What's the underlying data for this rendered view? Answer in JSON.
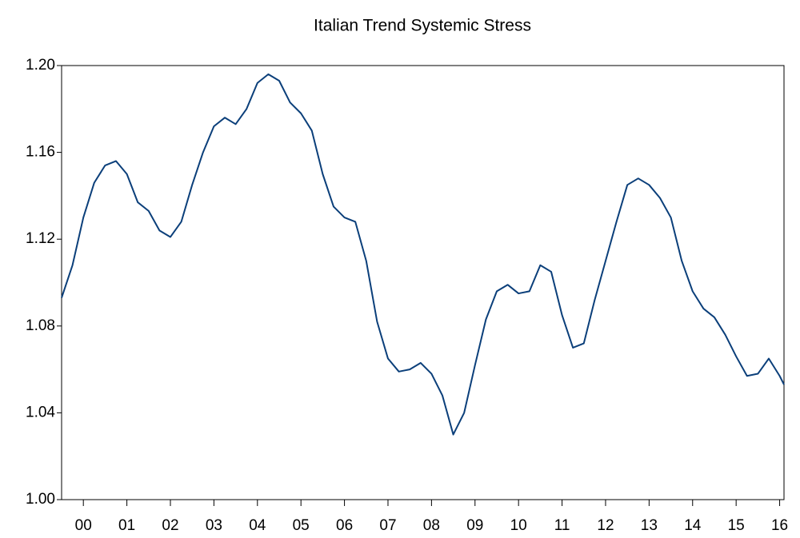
{
  "chart_data": {
    "type": "line",
    "title": "Italian Trend Systemic Stress",
    "x": [
      0,
      0.25,
      0.5,
      0.75,
      1,
      1.25,
      1.5,
      1.75,
      2,
      2.25,
      2.5,
      2.75,
      3,
      3.25,
      3.5,
      3.75,
      4,
      4.25,
      4.5,
      4.75,
      5,
      5.25,
      5.5,
      5.75,
      6,
      6.25,
      6.5,
      6.75,
      7,
      7.25,
      7.5,
      7.75,
      8,
      8.25,
      8.5,
      8.75,
      9,
      9.25,
      9.5,
      9.75,
      10,
      10.25,
      10.5,
      10.75,
      11,
      11.25,
      11.5,
      11.75,
      12,
      12.25,
      12.5,
      12.75,
      13,
      13.25,
      13.5,
      13.75,
      14,
      14.25,
      14.5,
      14.75,
      15,
      15.25,
      15.5,
      15.75,
      16,
      16.25,
      16.5,
      16.6
    ],
    "series": [
      {
        "name": "Italian Trend Systemic Stress",
        "color": "#0b3f7a",
        "values": [
          1.093,
          1.108,
          1.13,
          1.146,
          1.154,
          1.156,
          1.15,
          1.137,
          1.133,
          1.124,
          1.121,
          1.128,
          1.145,
          1.16,
          1.172,
          1.176,
          1.173,
          1.18,
          1.192,
          1.196,
          1.193,
          1.183,
          1.178,
          1.17,
          1.15,
          1.135,
          1.13,
          1.128,
          1.11,
          1.082,
          1.065,
          1.059,
          1.06,
          1.063,
          1.058,
          1.048,
          1.03,
          1.04,
          1.062,
          1.083,
          1.096,
          1.099,
          1.095,
          1.096,
          1.108,
          1.105,
          1.085,
          1.07,
          1.072,
          1.092,
          1.11,
          1.128,
          1.145,
          1.148,
          1.145,
          1.139,
          1.13,
          1.11,
          1.096,
          1.088,
          1.084,
          1.076,
          1.066,
          1.057,
          1.058,
          1.065,
          1.057,
          1.053
        ]
      }
    ],
    "xlim": [
      0,
      16.6
    ],
    "xticks": [
      {
        "value": 0.5,
        "label": "00"
      },
      {
        "value": 1.5,
        "label": "01"
      },
      {
        "value": 2.5,
        "label": "02"
      },
      {
        "value": 3.5,
        "label": "03"
      },
      {
        "value": 4.5,
        "label": "04"
      },
      {
        "value": 5.5,
        "label": "05"
      },
      {
        "value": 6.5,
        "label": "06"
      },
      {
        "value": 7.5,
        "label": "07"
      },
      {
        "value": 8.5,
        "label": "08"
      },
      {
        "value": 9.5,
        "label": "09"
      },
      {
        "value": 10.5,
        "label": "10"
      },
      {
        "value": 11.5,
        "label": "11"
      },
      {
        "value": 12.5,
        "label": "12"
      },
      {
        "value": 13.5,
        "label": "13"
      },
      {
        "value": 14.5,
        "label": "14"
      },
      {
        "value": 15.5,
        "label": "15"
      },
      {
        "value": 16.5,
        "label": "16"
      }
    ],
    "ylim": [
      1.0,
      1.2
    ],
    "yticks": [
      {
        "value": 1.0,
        "label": "1.00"
      },
      {
        "value": 1.04,
        "label": "1.04"
      },
      {
        "value": 1.08,
        "label": "1.08"
      },
      {
        "value": 1.12,
        "label": "1.12"
      },
      {
        "value": 1.16,
        "label": "1.16"
      },
      {
        "value": 1.2,
        "label": "1.20"
      }
    ],
    "grid": false
  }
}
